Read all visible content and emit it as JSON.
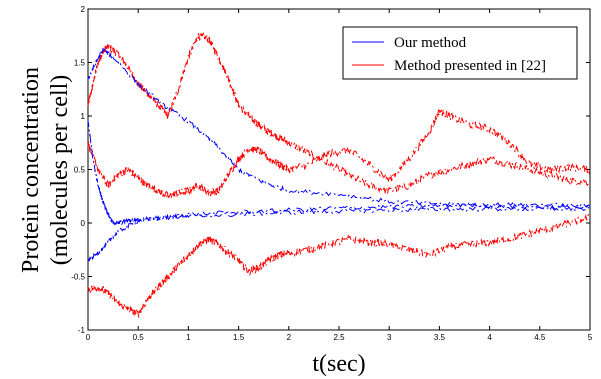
{
  "chart_data": {
    "type": "line",
    "xlabel": "t(sec)",
    "ylabel_line1": "Protein concentration",
    "ylabel_line2": "(molecules per cell)",
    "xlim": [
      0,
      5
    ],
    "ylim": [
      -1,
      2
    ],
    "x_ticks": [
      "0",
      "0.5",
      "1",
      "1.5",
      "2",
      "2.5",
      "3",
      "3.5",
      "4",
      "4.5",
      "5"
    ],
    "y_ticks": [
      "-1",
      "-0.5",
      "0",
      "0.5",
      "1",
      "1.5",
      "2"
    ],
    "grid": false,
    "legend_position": "top-right",
    "series": [
      {
        "name": "Our method",
        "color": "#0000ff",
        "style": "dash-dot",
        "curves": [
          {
            "x": [
              0,
              0.08,
              0.15,
              0.25,
              0.5,
              0.75,
              1.0,
              1.25,
              1.5,
              1.75,
              2.0,
              2.5,
              3.0,
              3.5,
              4.0,
              4.5,
              5.0
            ],
            "y": [
              1.35,
              1.5,
              1.62,
              1.55,
              1.3,
              1.1,
              0.95,
              0.75,
              0.5,
              0.38,
              0.3,
              0.27,
              0.2,
              0.18,
              0.16,
              0.15,
              0.14
            ]
          },
          {
            "x": [
              0,
              0.05,
              0.1,
              0.15,
              0.2,
              0.25,
              0.3,
              0.4,
              0.5,
              0.75,
              1.0,
              1.5,
              2.0,
              2.5,
              3.0,
              3.5,
              4.0,
              4.5,
              5.0
            ],
            "y": [
              0.95,
              0.6,
              0.35,
              0.2,
              0.08,
              0.0,
              0.0,
              0.02,
              0.03,
              0.05,
              0.06,
              0.08,
              0.1,
              0.11,
              0.12,
              0.13,
              0.13,
              0.13,
              0.13
            ]
          },
          {
            "x": [
              0,
              0.1,
              0.2,
              0.3,
              0.5,
              0.75,
              1.0,
              1.5,
              2.0,
              2.5,
              3.0,
              3.5,
              4.0,
              4.5,
              5.0
            ],
            "y": [
              -0.35,
              -0.28,
              -0.18,
              -0.08,
              0.02,
              0.05,
              0.08,
              0.1,
              0.12,
              0.14,
              0.15,
              0.16,
              0.17,
              0.17,
              0.16
            ]
          }
        ]
      },
      {
        "name": "Method presented in [22]",
        "color": "#ff0000",
        "style": "dash-dot",
        "curves": [
          {
            "x": [
              0,
              0.05,
              0.1,
              0.15,
              0.2,
              0.3,
              0.4,
              0.5,
              0.6,
              0.7,
              0.8,
              0.9,
              1.0,
              1.1,
              1.2,
              1.3,
              1.4,
              1.5,
              1.6,
              1.7,
              1.8,
              1.9,
              2.0,
              2.2,
              2.4,
              2.6,
              2.8,
              3.0,
              3.2,
              3.4,
              3.6,
              3.8,
              4.0,
              4.2,
              4.4,
              4.6,
              4.8,
              5.0
            ],
            "y": [
              1.1,
              1.3,
              1.5,
              1.6,
              1.65,
              1.58,
              1.45,
              1.3,
              1.2,
              1.1,
              1.0,
              1.25,
              1.55,
              1.75,
              1.72,
              1.55,
              1.35,
              1.1,
              1.0,
              0.92,
              0.85,
              0.8,
              0.75,
              0.65,
              0.55,
              0.45,
              0.35,
              0.3,
              0.35,
              0.45,
              0.5,
              0.55,
              0.6,
              0.55,
              0.5,
              0.45,
              0.4,
              0.38
            ]
          },
          {
            "x": [
              0,
              0.1,
              0.2,
              0.3,
              0.4,
              0.5,
              0.6,
              0.7,
              0.8,
              0.9,
              1.0,
              1.1,
              1.2,
              1.3,
              1.4,
              1.5,
              1.6,
              1.7,
              1.8,
              1.9,
              2.0,
              2.2,
              2.4,
              2.6,
              2.8,
              3.0,
              3.2,
              3.4,
              3.5,
              3.6,
              3.8,
              4.0,
              4.2,
              4.4,
              4.6,
              4.8,
              5.0
            ],
            "y": [
              0.75,
              0.5,
              0.35,
              0.45,
              0.5,
              0.42,
              0.35,
              0.3,
              0.25,
              0.28,
              0.3,
              0.35,
              0.28,
              0.3,
              0.45,
              0.6,
              0.7,
              0.68,
              0.6,
              0.55,
              0.5,
              0.55,
              0.65,
              0.68,
              0.55,
              0.4,
              0.6,
              0.85,
              1.05,
              1.0,
              0.92,
              0.88,
              0.75,
              0.55,
              0.5,
              0.52,
              0.5
            ]
          },
          {
            "x": [
              0,
              0.1,
              0.2,
              0.3,
              0.4,
              0.5,
              0.6,
              0.7,
              0.8,
              0.9,
              1.0,
              1.1,
              1.2,
              1.3,
              1.4,
              1.5,
              1.6,
              1.7,
              1.8,
              1.9,
              2.0,
              2.2,
              2.4,
              2.6,
              2.8,
              3.0,
              3.2,
              3.4,
              3.6,
              3.8,
              4.0,
              4.2,
              4.4,
              4.6,
              4.8,
              5.0
            ],
            "y": [
              -0.62,
              -0.6,
              -0.65,
              -0.75,
              -0.8,
              -0.85,
              -0.7,
              -0.6,
              -0.5,
              -0.4,
              -0.3,
              -0.2,
              -0.15,
              -0.2,
              -0.28,
              -0.35,
              -0.45,
              -0.42,
              -0.35,
              -0.3,
              -0.28,
              -0.25,
              -0.2,
              -0.15,
              -0.18,
              -0.2,
              -0.25,
              -0.3,
              -0.22,
              -0.2,
              -0.18,
              -0.15,
              -0.1,
              -0.05,
              0.0,
              0.05
            ]
          }
        ]
      }
    ]
  }
}
